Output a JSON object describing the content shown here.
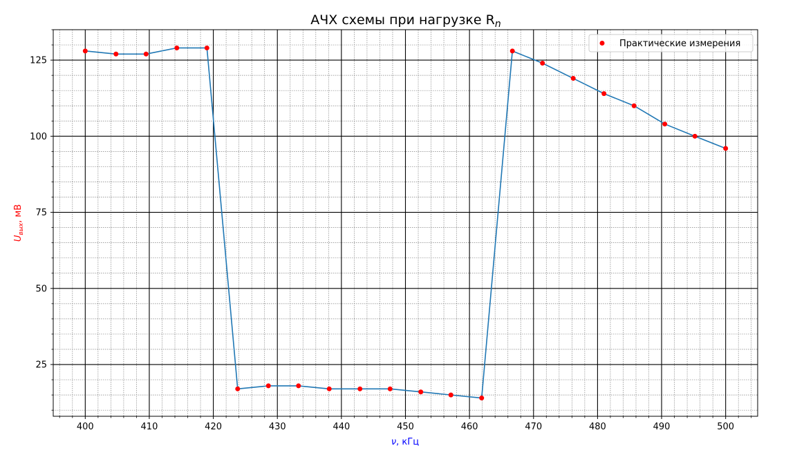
{
  "chart_data": {
    "type": "line",
    "title": "АЧХ схемы при нагрузке R",
    "title_subscript": "n",
    "xlabel": "ν, кГц",
    "xlabel_symbol": "ν",
    "xlabel_unit": ", кГц",
    "ylabel": "Uвых, мВ",
    "ylabel_symbol": "U",
    "ylabel_subscript": "вых",
    "ylabel_unit": ", мВ",
    "xlim": [
      395,
      505
    ],
    "ylim": [
      8,
      135
    ],
    "x_ticks": [
      400,
      410,
      420,
      430,
      440,
      450,
      460,
      470,
      480,
      490,
      500
    ],
    "y_ticks": [
      25,
      50,
      75,
      100,
      125
    ],
    "grid": true,
    "legend_position": "top-right",
    "series": [
      {
        "name": "Практические измерения",
        "marker_color": "#ff0000",
        "line_color": "#1f77b4",
        "x": [
          400,
          404.8,
          409.5,
          414.3,
          419.0,
          423.8,
          428.6,
          433.3,
          438.1,
          442.9,
          447.6,
          452.4,
          457.1,
          461.9,
          466.7,
          471.4,
          476.2,
          481.0,
          485.7,
          490.5,
          495.2,
          500
        ],
        "y": [
          128,
          127,
          127,
          129,
          129,
          17,
          18,
          18,
          17,
          17,
          17,
          16,
          15,
          14,
          128,
          124,
          119,
          114,
          110,
          104,
          100,
          96
        ]
      }
    ]
  }
}
